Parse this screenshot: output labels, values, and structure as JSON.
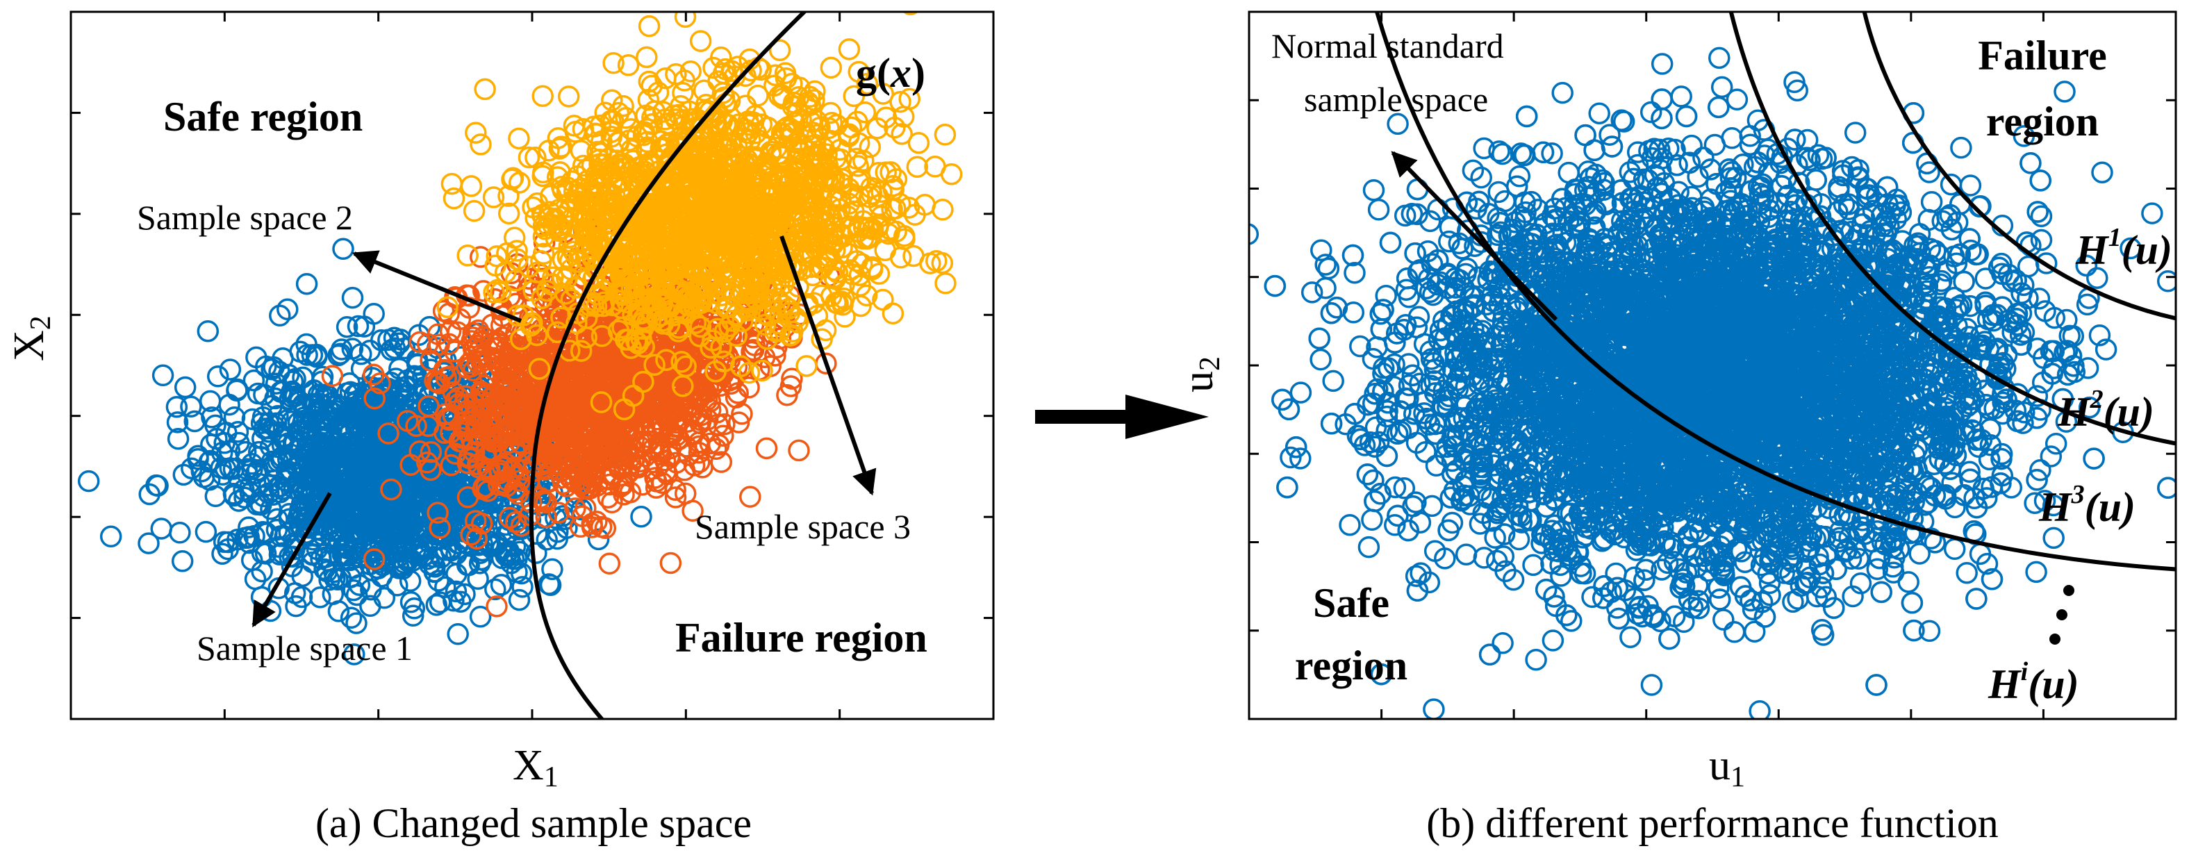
{
  "panel_a": {
    "caption": "(a) Changed sample space",
    "xlabel": "X",
    "xlabel_sub": "1",
    "ylabel": "X",
    "ylabel_sub": "2",
    "function_label": "g(",
    "function_var": "x",
    "function_close": ")",
    "safe_region": "Safe region",
    "failure_region": "Failure region",
    "sample_space_1": "Sample space 1",
    "sample_space_2": "Sample space 2",
    "sample_space_3": "Sample space 3",
    "colors": {
      "space1": "#0072BD",
      "space2": "#F05A14",
      "space3": "#FFAE00"
    }
  },
  "panel_b": {
    "caption": "(b) different performance function",
    "xlabel": "u",
    "xlabel_sub": "1",
    "ylabel": "u",
    "ylabel_sub": "2",
    "normal_space_line1": "Normal standard",
    "normal_space_line2": "sample space",
    "failure_region_line1": "Failure",
    "failure_region_line2": "region",
    "safe_region_line1": "Safe",
    "safe_region_line2": "region",
    "functions": [
      {
        "name": "H",
        "sup": "1",
        "arg": "(u)"
      },
      {
        "name": "H",
        "sup": "2",
        "arg": "(u)"
      },
      {
        "name": "H",
        "sup": "3",
        "arg": "(u)"
      },
      {
        "name": "H",
        "sup": "i",
        "arg": "(u)"
      }
    ],
    "colors": {
      "samples": "#0072BD"
    }
  },
  "transition_arrow": "right-arrow"
}
